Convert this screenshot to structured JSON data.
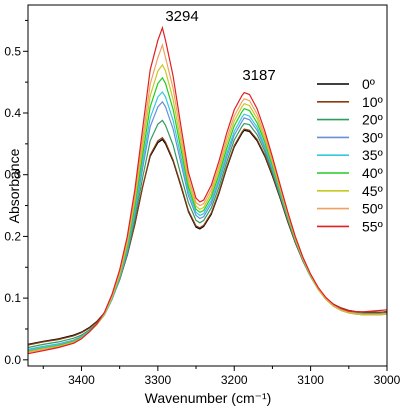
{
  "chart_data": {
    "type": "line",
    "xlabel": "Wavenumber (cm⁻¹)",
    "ylabel": "Absorbance",
    "xlim": [
      3470,
      3000
    ],
    "ylim": [
      -0.01,
      0.575
    ],
    "x_reversed": true,
    "x_ticks": [
      3400,
      3300,
      3200,
      3100,
      3000
    ],
    "y_ticks": [
      0.0,
      0.1,
      0.2,
      0.3,
      0.4,
      0.5
    ],
    "x_tick_labels": [
      "3400",
      "3300",
      "3200",
      "3100",
      "3000"
    ],
    "y_tick_labels": [
      "0.0",
      "0.1",
      "0.2",
      "0.3",
      "0.4",
      "0.5"
    ],
    "grid": false,
    "legend_position": "right",
    "annotations": [
      {
        "text": "3294",
        "x": 3294,
        "y": 0.555
      },
      {
        "text": "3187",
        "x": 3187,
        "y": 0.457
      }
    ],
    "x": [
      3470,
      3450,
      3430,
      3410,
      3400,
      3390,
      3380,
      3370,
      3360,
      3350,
      3340,
      3330,
      3320,
      3310,
      3300,
      3294,
      3290,
      3280,
      3270,
      3260,
      3250,
      3245,
      3240,
      3230,
      3220,
      3210,
      3200,
      3190,
      3187,
      3180,
      3170,
      3160,
      3150,
      3140,
      3130,
      3120,
      3110,
      3100,
      3090,
      3080,
      3070,
      3060,
      3050,
      3040,
      3030,
      3020,
      3010,
      3000
    ],
    "series": [
      {
        "name": "0º",
        "color": "#000000",
        "values": [
          0.025,
          0.03,
          0.034,
          0.04,
          0.045,
          0.052,
          0.062,
          0.076,
          0.1,
          0.13,
          0.17,
          0.22,
          0.28,
          0.33,
          0.352,
          0.357,
          0.35,
          0.322,
          0.282,
          0.24,
          0.215,
          0.212,
          0.216,
          0.236,
          0.27,
          0.31,
          0.345,
          0.367,
          0.372,
          0.37,
          0.355,
          0.33,
          0.298,
          0.262,
          0.224,
          0.19,
          0.16,
          0.135,
          0.115,
          0.1,
          0.09,
          0.084,
          0.08,
          0.078,
          0.077,
          0.077,
          0.077,
          0.078
        ]
      },
      {
        "name": "10º",
        "color": "#8B3A0E",
        "values": [
          0.024,
          0.029,
          0.033,
          0.039,
          0.044,
          0.051,
          0.061,
          0.075,
          0.099,
          0.13,
          0.17,
          0.22,
          0.28,
          0.332,
          0.355,
          0.36,
          0.353,
          0.324,
          0.284,
          0.242,
          0.217,
          0.214,
          0.218,
          0.238,
          0.272,
          0.312,
          0.347,
          0.369,
          0.374,
          0.372,
          0.357,
          0.332,
          0.3,
          0.263,
          0.225,
          0.19,
          0.16,
          0.135,
          0.115,
          0.1,
          0.09,
          0.084,
          0.08,
          0.078,
          0.077,
          0.077,
          0.077,
          0.078
        ]
      },
      {
        "name": "20º",
        "color": "#2E9E5E",
        "values": [
          0.02,
          0.025,
          0.029,
          0.035,
          0.04,
          0.048,
          0.058,
          0.073,
          0.098,
          0.13,
          0.172,
          0.228,
          0.295,
          0.355,
          0.382,
          0.388,
          0.38,
          0.348,
          0.3,
          0.255,
          0.226,
          0.222,
          0.226,
          0.246,
          0.28,
          0.32,
          0.356,
          0.378,
          0.383,
          0.381,
          0.365,
          0.338,
          0.304,
          0.266,
          0.228,
          0.192,
          0.161,
          0.135,
          0.115,
          0.1,
          0.089,
          0.082,
          0.078,
          0.076,
          0.075,
          0.075,
          0.075,
          0.076
        ]
      },
      {
        "name": "30º",
        "color": "#6B8FD6",
        "values": [
          0.017,
          0.022,
          0.026,
          0.032,
          0.038,
          0.046,
          0.057,
          0.073,
          0.098,
          0.132,
          0.176,
          0.236,
          0.31,
          0.378,
          0.41,
          0.418,
          0.41,
          0.374,
          0.32,
          0.266,
          0.234,
          0.229,
          0.232,
          0.253,
          0.288,
          0.328,
          0.364,
          0.386,
          0.392,
          0.389,
          0.372,
          0.343,
          0.308,
          0.269,
          0.23,
          0.193,
          0.161,
          0.135,
          0.114,
          0.098,
          0.087,
          0.081,
          0.077,
          0.075,
          0.074,
          0.074,
          0.074,
          0.075
        ]
      },
      {
        "name": "35º",
        "color": "#36C8E0",
        "values": [
          0.016,
          0.021,
          0.025,
          0.031,
          0.037,
          0.046,
          0.057,
          0.073,
          0.099,
          0.134,
          0.18,
          0.243,
          0.32,
          0.392,
          0.426,
          0.434,
          0.426,
          0.388,
          0.33,
          0.273,
          0.239,
          0.234,
          0.237,
          0.258,
          0.293,
          0.334,
          0.37,
          0.393,
          0.398,
          0.395,
          0.377,
          0.347,
          0.311,
          0.271,
          0.231,
          0.194,
          0.162,
          0.135,
          0.114,
          0.098,
          0.087,
          0.08,
          0.076,
          0.074,
          0.073,
          0.073,
          0.073,
          0.074
        ]
      },
      {
        "name": "40º",
        "color": "#22CC22",
        "values": [
          0.014,
          0.019,
          0.023,
          0.03,
          0.036,
          0.045,
          0.057,
          0.074,
          0.1,
          0.136,
          0.184,
          0.25,
          0.332,
          0.41,
          0.448,
          0.457,
          0.448,
          0.406,
          0.342,
          0.28,
          0.244,
          0.239,
          0.242,
          0.264,
          0.3,
          0.342,
          0.379,
          0.402,
          0.407,
          0.404,
          0.384,
          0.353,
          0.315,
          0.274,
          0.233,
          0.195,
          0.162,
          0.135,
          0.114,
          0.098,
          0.087,
          0.08,
          0.076,
          0.074,
          0.073,
          0.073,
          0.073,
          0.074
        ]
      },
      {
        "name": "45º",
        "color": "#C8C820",
        "values": [
          0.013,
          0.018,
          0.022,
          0.029,
          0.035,
          0.045,
          0.057,
          0.074,
          0.101,
          0.138,
          0.188,
          0.258,
          0.345,
          0.428,
          0.468,
          0.478,
          0.468,
          0.422,
          0.353,
          0.287,
          0.249,
          0.244,
          0.247,
          0.27,
          0.307,
          0.35,
          0.387,
          0.41,
          0.415,
          0.412,
          0.391,
          0.358,
          0.319,
          0.277,
          0.235,
          0.196,
          0.163,
          0.136,
          0.114,
          0.098,
          0.087,
          0.08,
          0.076,
          0.074,
          0.073,
          0.073,
          0.073,
          0.074
        ]
      },
      {
        "name": "50º",
        "color": "#F0A060",
        "values": [
          0.012,
          0.017,
          0.021,
          0.028,
          0.035,
          0.045,
          0.057,
          0.075,
          0.103,
          0.141,
          0.193,
          0.266,
          0.358,
          0.447,
          0.49,
          0.51,
          0.49,
          0.44,
          0.366,
          0.295,
          0.255,
          0.25,
          0.253,
          0.276,
          0.314,
          0.358,
          0.395,
          0.418,
          0.423,
          0.42,
          0.398,
          0.364,
          0.323,
          0.28,
          0.237,
          0.198,
          0.164,
          0.137,
          0.115,
          0.099,
          0.088,
          0.081,
          0.077,
          0.075,
          0.074,
          0.074,
          0.074,
          0.075
        ]
      },
      {
        "name": "55º",
        "color": "#E02020",
        "values": [
          0.01,
          0.015,
          0.02,
          0.027,
          0.034,
          0.045,
          0.058,
          0.077,
          0.106,
          0.146,
          0.2,
          0.276,
          0.374,
          0.47,
          0.518,
          0.538,
          0.518,
          0.46,
          0.38,
          0.304,
          0.262,
          0.256,
          0.259,
          0.283,
          0.322,
          0.367,
          0.405,
          0.428,
          0.433,
          0.43,
          0.407,
          0.371,
          0.329,
          0.284,
          0.24,
          0.2,
          0.166,
          0.139,
          0.117,
          0.101,
          0.09,
          0.083,
          0.079,
          0.078,
          0.078,
          0.079,
          0.08,
          0.081
        ]
      }
    ]
  }
}
